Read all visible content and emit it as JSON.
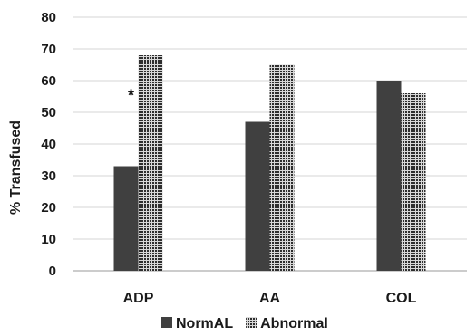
{
  "chart_data": {
    "type": "bar",
    "title": "",
    "xlabel": "",
    "ylabel": "% Transfused",
    "categories": [
      "ADP",
      "AA",
      "COL"
    ],
    "series": [
      {
        "name": "NormAL",
        "values": [
          33,
          47,
          60
        ],
        "color": "#404040",
        "pattern": "solid"
      },
      {
        "name": "Abnormal",
        "values": [
          68,
          65,
          56
        ],
        "color": "#3a3a3a",
        "pattern": "checker"
      }
    ],
    "ylim": [
      0,
      80
    ],
    "yticks": [
      0,
      10,
      20,
      30,
      40,
      50,
      60,
      70,
      80
    ],
    "grid": true,
    "legend": "bottom",
    "annotations": [
      {
        "text": "*",
        "category": "ADP",
        "series": "Abnormal",
        "y": 59
      }
    ]
  }
}
